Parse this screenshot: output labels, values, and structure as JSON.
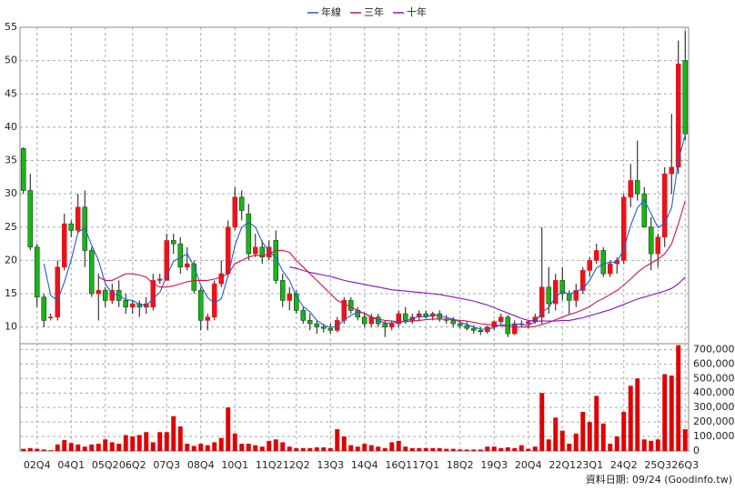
{
  "chart_data": {
    "type": "candlestick",
    "categories": [
      null,
      null,
      "02Q4",
      null,
      null,
      null,
      null,
      "04Q1",
      null,
      null,
      null,
      null,
      "05Q2",
      null,
      null,
      null,
      "06Q2",
      null,
      null,
      null,
      null,
      "07Q3",
      null,
      null,
      null,
      null,
      "08Q4",
      null,
      null,
      null,
      null,
      "10Q1",
      null,
      null,
      null,
      null,
      "11Q2",
      null,
      null,
      null,
      "12Q2",
      null,
      null,
      null,
      null,
      "13Q3",
      null,
      null,
      null,
      null,
      "14Q4",
      null,
      null,
      null,
      null,
      "16Q1",
      null,
      null,
      null,
      "17Q1",
      null,
      null,
      null,
      null,
      "18Q2",
      null,
      null,
      null,
      null,
      "19Q3",
      null,
      null,
      null,
      null,
      "20Q4",
      null,
      null,
      null,
      null,
      "22Q1",
      null,
      null,
      null,
      "23Q1",
      null,
      null,
      null,
      null,
      "24Q2",
      null,
      null,
      null,
      null,
      "25Q3",
      null,
      null,
      null,
      "26Q3"
    ],
    "open": [
      36.8,
      30.5,
      22,
      14.5,
      11.5,
      11.5,
      19,
      25.5,
      24.5,
      28,
      21.5,
      15,
      15.5,
      14,
      15.5,
      14,
      13,
      13.5,
      13,
      13,
      17,
      17,
      23,
      22.5,
      19,
      19.5,
      15.5,
      11,
      11.5,
      16.5,
      18,
      25,
      29.5,
      27,
      21,
      22,
      20.5,
      23,
      17,
      14,
      15,
      12.5,
      11,
      10.5,
      10,
      9.8,
      9.5,
      11,
      14,
      12.5,
      11.5,
      10.5,
      11.5,
      10.5,
      10,
      10.5,
      12,
      11,
      11.5,
      12,
      11.6,
      12,
      11.2,
      11,
      10.5,
      10.2,
      9.8,
      9.5,
      9.3,
      10,
      10.8,
      11.5,
      9,
      10.5,
      10.5,
      10.8,
      11.5,
      16,
      13.5,
      17,
      15,
      14,
      15.5,
      18.5,
      20,
      21.5,
      18,
      19.5,
      20,
      29.5,
      32,
      30,
      25,
      21,
      23.5,
      33,
      34,
      50
    ],
    "high": [
      37,
      33,
      22.5,
      15,
      12,
      20,
      27,
      26,
      30,
      30.5,
      22,
      18,
      16,
      16.5,
      17,
      15,
      14,
      14,
      14.5,
      18,
      18,
      24,
      24,
      23.5,
      22,
      20,
      16,
      12,
      17,
      20,
      26,
      31,
      30.5,
      28.5,
      24,
      23,
      23,
      24.5,
      18,
      16,
      15.5,
      13,
      12,
      11,
      10.5,
      10.5,
      11.5,
      14.5,
      14.5,
      13,
      12,
      12,
      12,
      11,
      11,
      12.5,
      13,
      12,
      12.5,
      12.5,
      12.3,
      12.5,
      11.8,
      11.5,
      11,
      10.8,
      10.3,
      10,
      10.2,
      11,
      12,
      11.8,
      11,
      11,
      11,
      12,
      25,
      19,
      18,
      19,
      15.5,
      16.5,
      19,
      20.5,
      22.5,
      22,
      20,
      20.5,
      30,
      34.5,
      38,
      31,
      26.5,
      24,
      34,
      42,
      53,
      54.5
    ],
    "low": [
      30,
      21.5,
      13,
      10,
      11,
      11,
      18.5,
      23.5,
      24,
      19,
      14.5,
      11,
      13,
      13.5,
      13,
      12,
      12,
      11.5,
      12,
      12.5,
      16.5,
      17,
      21,
      18,
      18.5,
      15,
      9.5,
      9.5,
      11,
      16,
      17.5,
      24.5,
      26,
      20,
      20.5,
      19.5,
      20,
      16.5,
      13,
      12.5,
      12,
      10.5,
      9.5,
      9,
      9.2,
      9,
      9.2,
      10.5,
      12,
      11,
      10,
      10,
      10,
      8.5,
      9.5,
      10,
      10.5,
      10.5,
      11,
      11.3,
      11,
      10.8,
      10.5,
      10,
      9.8,
      9.5,
      9,
      8.8,
      9,
      9.5,
      10.5,
      8.5,
      8.8,
      10,
      9.8,
      10.5,
      10.5,
      12,
      12.5,
      14,
      12,
      13,
      15,
      17.5,
      19.5,
      17.5,
      17.5,
      18,
      19.5,
      28,
      29,
      25,
      18.5,
      19,
      22,
      30,
      33,
      38
    ],
    "close": [
      30.5,
      22,
      14.5,
      11,
      11.5,
      19,
      25.5,
      24.5,
      28,
      21.5,
      15,
      15.5,
      14,
      15.5,
      14,
      13,
      13.5,
      13,
      13.5,
      17,
      17.2,
      23,
      22.5,
      19,
      19.5,
      15.5,
      11,
      11.5,
      16.5,
      18,
      25,
      29.5,
      27.5,
      21,
      22,
      20.5,
      22,
      17,
      14,
      15,
      12.5,
      11,
      10.5,
      10,
      9.8,
      9.5,
      11,
      14,
      12.5,
      11.5,
      10.5,
      11.5,
      10.5,
      10,
      10.5,
      12,
      11,
      11.5,
      12,
      11.6,
      12,
      11.2,
      11,
      10.5,
      10.2,
      9.8,
      9.5,
      9.3,
      10,
      10.8,
      11.5,
      9,
      10.5,
      10.5,
      10.8,
      11.5,
      16,
      13.5,
      17,
      15,
      14,
      15.5,
      18.5,
      20,
      21.5,
      18,
      19.5,
      20,
      29.5,
      32,
      30,
      25,
      21,
      23.5,
      33,
      34,
      49.5,
      39
    ],
    "volume": [
      15000,
      20000,
      15000,
      10000,
      5000,
      45000,
      75000,
      55000,
      45000,
      30000,
      45000,
      50000,
      80000,
      60000,
      50000,
      110000,
      100000,
      110000,
      130000,
      60000,
      130000,
      130000,
      240000,
      170000,
      50000,
      35000,
      50000,
      40000,
      60000,
      90000,
      300000,
      120000,
      50000,
      50000,
      40000,
      30000,
      70000,
      80000,
      60000,
      30000,
      20000,
      20000,
      20000,
      25000,
      25000,
      20000,
      150000,
      100000,
      40000,
      30000,
      50000,
      40000,
      30000,
      20000,
      60000,
      70000,
      30000,
      20000,
      20000,
      20000,
      20000,
      20000,
      15000,
      15000,
      10000,
      10000,
      10000,
      10000,
      30000,
      30000,
      20000,
      25000,
      20000,
      40000,
      15000,
      30000,
      400000,
      80000,
      230000,
      140000,
      50000,
      120000,
      270000,
      200000,
      380000,
      190000,
      50000,
      100000,
      270000,
      450000,
      500000,
      80000,
      70000,
      80000,
      530000,
      520000,
      730000,
      150000
    ],
    "up_color": "#e8141b",
    "down_color": "#1cb31c",
    "volume_color": "#e00000",
    "series": [
      {
        "name": "年線",
        "color": "#1f5fcf",
        "values": [
          null,
          null,
          null,
          19.5,
          14.75,
          14,
          16.75,
          20.1,
          24.25,
          24.9,
          22.25,
          20,
          16.5,
          15,
          14.75,
          14.1,
          14,
          13.4,
          13.25,
          14.25,
          15.2,
          17.7,
          19.9,
          20.4,
          21,
          19.1,
          16.25,
          14.4,
          13.6,
          14.25,
          17.75,
          22.25,
          25,
          25.75,
          25,
          22.75,
          21.4,
          20.4,
          18.4,
          17,
          14.6,
          13.1,
          12.25,
          11,
          10.3,
          9.95,
          10.1,
          11.1,
          11.75,
          12.25,
          12.1,
          11.5,
          11,
          10.6,
          10.6,
          10.75,
          10.9,
          11.25,
          11.6,
          11.5,
          11.8,
          11.7,
          11.45,
          11.2,
          10.7,
          10.4,
          10,
          9.7,
          9.65,
          9.9,
          10.4,
          10.3,
          10.45,
          10.4,
          10.2,
          10.8,
          12.2,
          12.95,
          14.5,
          15.4,
          14.9,
          15.4,
          15.75,
          17,
          18.9,
          19.5,
          19.75,
          19.75,
          21.75,
          25.25,
          27.9,
          29.1,
          27,
          24.9,
          25.6,
          27.9,
          35,
          38.9
        ]
      },
      {
        "name": "三年",
        "color": "#d8104a",
        "values": [
          null,
          null,
          null,
          null,
          null,
          null,
          null,
          null,
          null,
          null,
          null,
          17.5,
          17,
          17,
          17.5,
          18,
          18,
          17.8,
          17.5,
          16.5,
          16,
          16,
          16.2,
          16.5,
          16.8,
          17,
          17,
          17,
          17.2,
          17.5,
          18,
          19.5,
          20,
          20.5,
          20.8,
          20.7,
          21,
          21.5,
          21.5,
          21.2,
          20,
          19,
          18,
          17,
          16,
          15,
          14,
          13.5,
          13,
          12.5,
          12,
          11.5,
          11.2,
          11,
          10.9,
          10.8,
          10.8,
          10.9,
          11,
          11.1,
          11.2,
          11.2,
          11.2,
          11.1,
          11,
          10.9,
          10.7,
          10.5,
          10.4,
          10.3,
          10.2,
          10.1,
          10,
          10,
          10,
          10.1,
          10.4,
          10.7,
          11.1,
          11.5,
          11.9,
          12.2,
          12.6,
          13.1,
          13.8,
          14.3,
          14.9,
          15.5,
          16.3,
          17.2,
          18.2,
          19,
          19.6,
          20.2,
          21,
          22.5,
          25.5,
          29
        ]
      },
      {
        "name": "十年",
        "color": "#8a10c8",
        "values": [
          null,
          null,
          null,
          null,
          null,
          null,
          null,
          null,
          null,
          null,
          null,
          null,
          null,
          null,
          null,
          null,
          null,
          null,
          null,
          null,
          null,
          null,
          null,
          null,
          null,
          null,
          null,
          null,
          null,
          null,
          null,
          null,
          null,
          null,
          null,
          null,
          null,
          null,
          null,
          19,
          18.8,
          18.5,
          18.2,
          18,
          17.8,
          17.6,
          17.3,
          17,
          16.8,
          16.6,
          16.4,
          16.2,
          16,
          15.8,
          15.6,
          15.5,
          15.4,
          15.3,
          15.2,
          15.1,
          15,
          14.9,
          14.7,
          14.5,
          14.3,
          14.1,
          13.9,
          13.6,
          13.3,
          12.9,
          12.5,
          12.1,
          11.7,
          11.3,
          11,
          10.9,
          10.9,
          10.9,
          10.9,
          11,
          11,
          11.2,
          11.4,
          11.7,
          12,
          12.3,
          12.6,
          13,
          13.4,
          13.8,
          14.2,
          14.5,
          14.8,
          15.1,
          15.4,
          15.8,
          16.5,
          17.5
        ]
      }
    ],
    "ylim": [
      7.5,
      55
    ],
    "yticks": [
      10,
      15,
      20,
      25,
      30,
      35,
      40,
      45,
      50,
      55
    ],
    "y2lim": [
      0,
      740000
    ],
    "y2ticks": [
      0,
      {
        "value": 100000,
        "label": "100,000"
      },
      {
        "value": 200000,
        "label": "200,000"
      },
      {
        "value": 300000,
        "label": "300,000"
      },
      {
        "value": 400000,
        "label": "400,000"
      },
      {
        "value": 500000,
        "label": "500,000"
      },
      {
        "value": 600000,
        "label": "600,000"
      },
      {
        "value": 700000,
        "label": "700,000"
      }
    ],
    "grid": true,
    "source_note": "資料日期: 09/24 (Goodinfo.tw)"
  }
}
